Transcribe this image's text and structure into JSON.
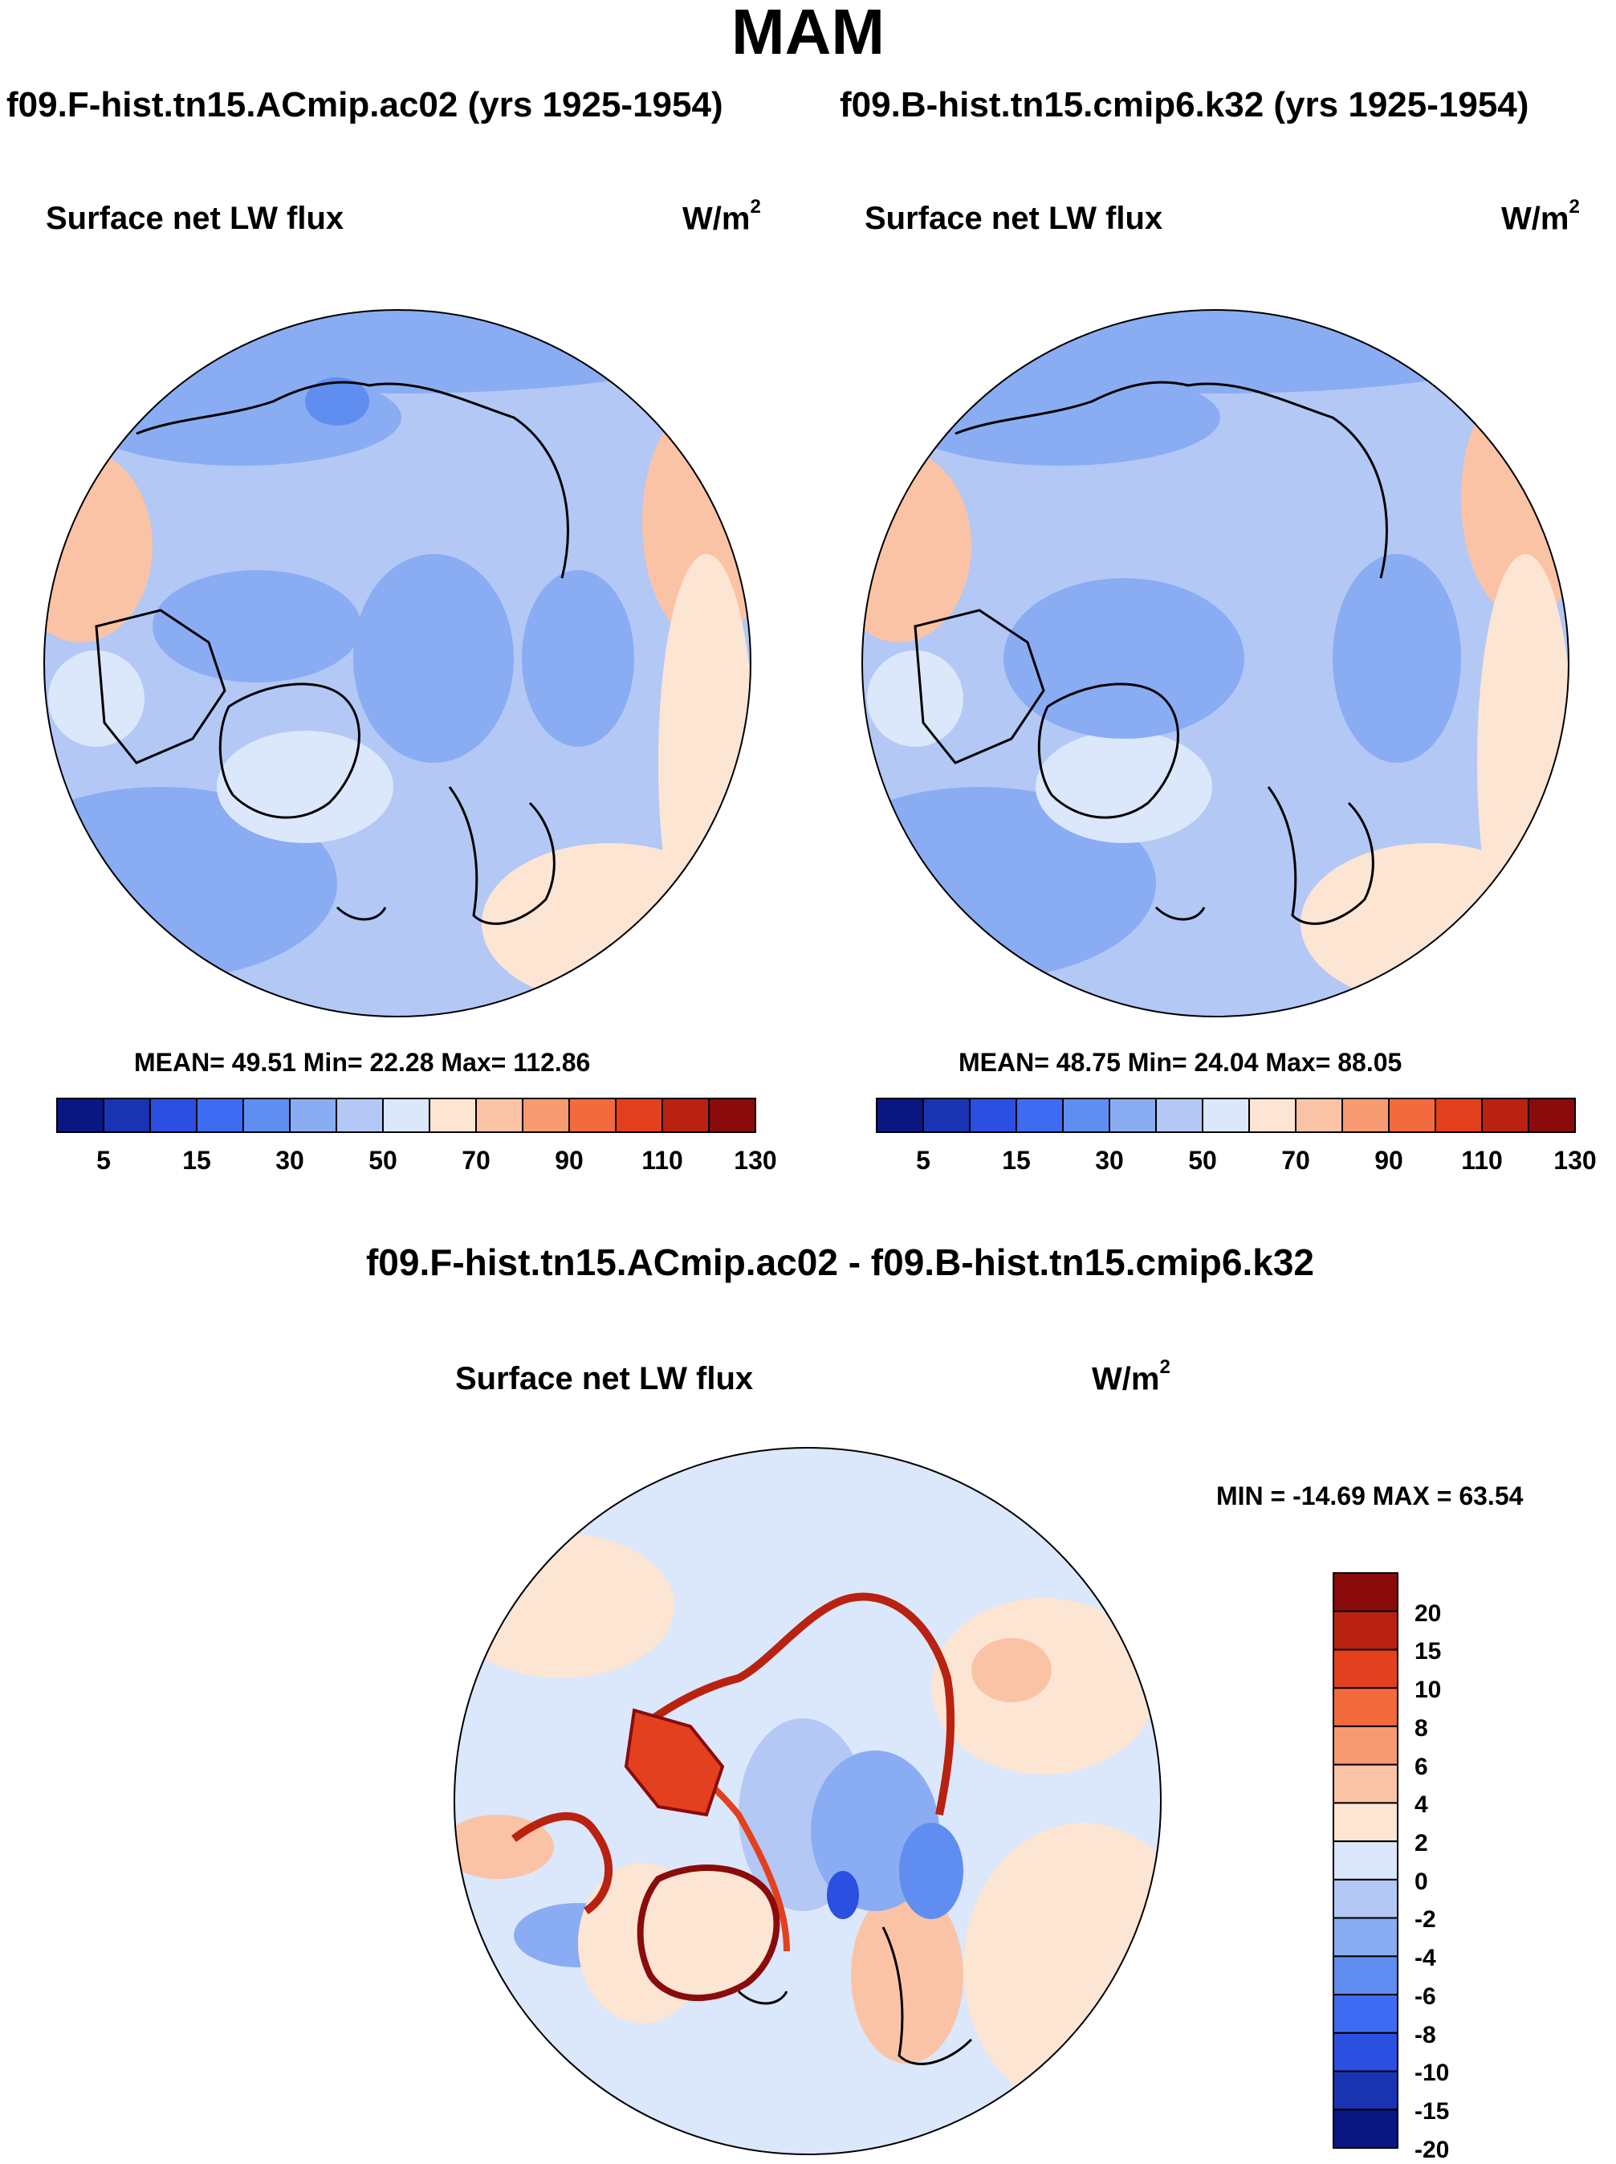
{
  "figure": {
    "title": "MAM",
    "diff_title": "f09.F-hist.tn15.ACmip.ac02 - f09.B-hist.tn15.cmip6.k32"
  },
  "panels": [
    {
      "case_title": "f09.F-hist.tn15.ACmip.ac02 (yrs 1925-1954)",
      "var_title": "Surface net LW flux",
      "units": "W/m",
      "units_sup": "2",
      "stats": "MEAN=  49.51  Min=  22.28  Max= 112.86"
    },
    {
      "case_title": "f09.B-hist.tn15.cmip6.k32 (yrs 1925-1954)",
      "var_title": "Surface net LW flux",
      "units": "W/m",
      "units_sup": "2",
      "stats": "MEAN=  48.75  Min=  24.04  Max=  88.05"
    },
    {
      "var_title": "Surface net LW flux",
      "units": "W/m",
      "units_sup": "2",
      "stats": "MIN = -14.69 MAX =  63.54"
    }
  ],
  "abs_colorbar": {
    "colors": [
      "#0a1682",
      "#1a33b3",
      "#2b4fe0",
      "#3d6cf2",
      "#5f8ef0",
      "#8aacf2",
      "#b3c8f5",
      "#dbe7fa",
      "#fde5d3",
      "#fbc3a5",
      "#f79a72",
      "#f26a3d",
      "#e2401e",
      "#b92210",
      "#8a0b0b"
    ],
    "labels": [
      "5",
      "15",
      "30",
      "50",
      "70",
      "90",
      "110",
      "130"
    ]
  },
  "diff_colorbar": {
    "colors": [
      "#8a0b0b",
      "#b92210",
      "#e2401e",
      "#f26a3d",
      "#f79a72",
      "#fbc3a5",
      "#fde5d3",
      "#dbe7fa",
      "#b3c8f5",
      "#8aacf2",
      "#5f8ef0",
      "#3d6cf2",
      "#2b4fe0",
      "#1a33b3",
      "#0a1682"
    ],
    "labels": [
      "20",
      "15",
      "10",
      "8",
      "6",
      "4",
      "2",
      "0",
      "-2",
      "-4",
      "-6",
      "-8",
      "-10",
      "-15",
      "-20"
    ]
  }
}
